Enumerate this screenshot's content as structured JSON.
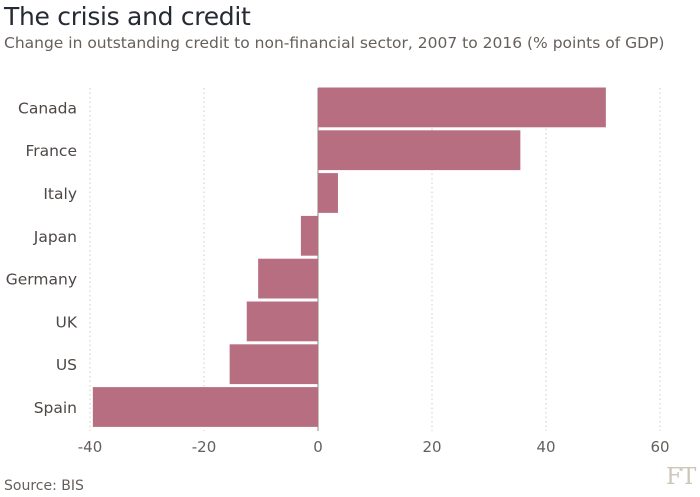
{
  "chart_data": {
    "type": "bar",
    "orientation": "horizontal",
    "title": "The crisis and credit",
    "subtitle": "Change in outstanding credit to non-financial sector, 2007 to 2016 (% points of GDP)",
    "categories": [
      "Canada",
      "France",
      "Italy",
      "Japan",
      "Germany",
      "UK",
      "US",
      "Spain"
    ],
    "values": [
      50.5,
      35.5,
      3.5,
      -3.0,
      -10.5,
      -12.5,
      -15.5,
      -39.5
    ],
    "xlim": [
      -40,
      60
    ],
    "xticks": [
      -40,
      -20,
      0,
      20,
      40,
      60
    ],
    "xtick_labels": [
      "-40",
      "-20",
      "0",
      "20",
      "40",
      "60"
    ],
    "xlabel": "",
    "ylabel": "",
    "grid": "vertical dotted",
    "bar_color": "#b86e81",
    "grid_color": "#cccccc",
    "text_color": "#33302e"
  },
  "footer": {
    "source": "Source: BIS",
    "logo": "FT"
  }
}
